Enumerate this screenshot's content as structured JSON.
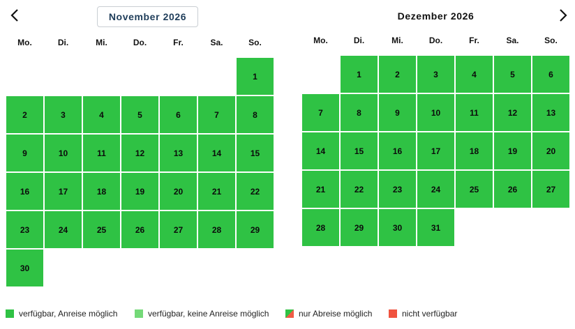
{
  "nav": {
    "prev_icon": "chevron-left-icon",
    "next_icon": "chevron-right-icon"
  },
  "weekdays": [
    "Mo.",
    "Di.",
    "Mi.",
    "Do.",
    "Fr.",
    "Sa.",
    "So."
  ],
  "colors": {
    "available_arrival": "#2fc244",
    "available_no_arrival": "#74d978",
    "departure_only": "#ef5b45",
    "unavailable": "#f0533f"
  },
  "months": [
    {
      "title": "November 2026",
      "leading_blanks": 6,
      "days": [
        "1",
        "2",
        "3",
        "4",
        "5",
        "6",
        "7",
        "8",
        "9",
        "10",
        "11",
        "12",
        "13",
        "14",
        "15",
        "16",
        "17",
        "18",
        "19",
        "20",
        "21",
        "22",
        "23",
        "24",
        "25",
        "26",
        "27",
        "28",
        "29",
        "30"
      ]
    },
    {
      "title": "Dezember 2026",
      "leading_blanks": 1,
      "days": [
        "1",
        "2",
        "3",
        "4",
        "5",
        "6",
        "7",
        "8",
        "9",
        "10",
        "11",
        "12",
        "13",
        "14",
        "15",
        "16",
        "17",
        "18",
        "19",
        "20",
        "21",
        "22",
        "23",
        "24",
        "25",
        "26",
        "27",
        "28",
        "29",
        "30",
        "31"
      ]
    }
  ],
  "legend": [
    {
      "label": "verfügbar, Anreise möglich"
    },
    {
      "label": "verfügbar, keine Anreise möglich"
    },
    {
      "label": "nur Abreise möglich"
    },
    {
      "label": "nicht verfügbar"
    }
  ]
}
